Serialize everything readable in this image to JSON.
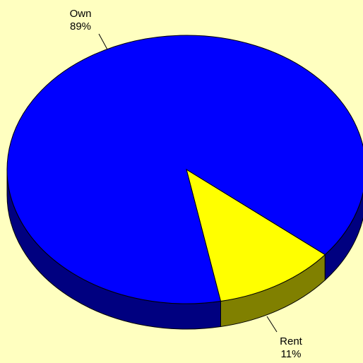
{
  "chart_data": {
    "type": "pie",
    "style": "3d",
    "background": "#FFFFC0",
    "slices": [
      {
        "name": "Own",
        "percent_label": "89%",
        "value": 89,
        "color": "#0000FF",
        "side_color": "#000080"
      },
      {
        "name": "Rent",
        "percent_label": "11%",
        "value": 11,
        "color": "#FFFF00",
        "side_color": "#808000"
      }
    ]
  }
}
